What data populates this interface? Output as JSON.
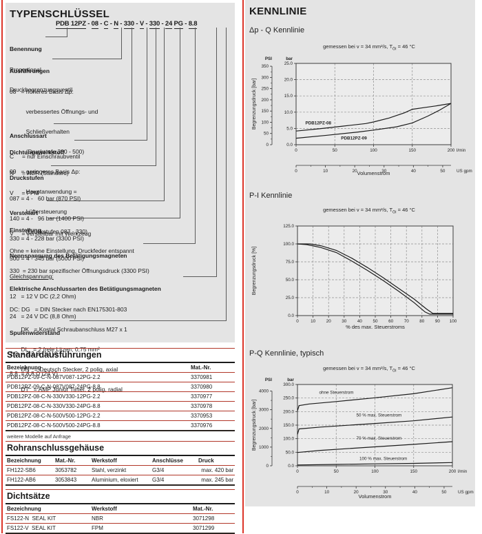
{
  "colors": {
    "accent_red": "#dc3327",
    "table_rule_red": "#b13527",
    "panel_gray": "#e4e4e4",
    "curve_black": "#1b1b1b"
  },
  "left": {
    "type_key": {
      "title": "TYPENSCHLÜSSEL",
      "sep_dash": " - ",
      "sep_space": " ",
      "code_segments": [
        "PDB 12PZ",
        "08",
        "C",
        "N",
        "330",
        "V",
        "330",
        "24",
        "PG",
        "8.8"
      ],
      "groups": [
        {
          "title": "Benennung",
          "lines": [
            "Proportional",
            "Druckbegrenzungsventil"
          ]
        },
        {
          "title": "Ausführungen",
          "lines": [
            "08   = höheres Basis Δp:",
            "          verbessertes Öffnungs- und",
            "          Schließverhalten",
            "          (Druckstufe 330 - 500)",
            "09   = geringeres Basis Δp:",
            "          Hauptanwendung =",
            "          Lüftersteuerung",
            "          (Druckstufen 087 - 330)"
          ]
        },
        {
          "title": "Anschlussart",
          "lines": [
            "C     = nur Einschraubventil"
          ]
        },
        {
          "title": "Dichtungswerkstoff",
          "lines": [
            "N     = NBR (Standard)",
            "V     = FPM"
          ]
        },
        {
          "title": "Druckstufen",
          "lines": [
            "087 = 4 -   60 bar (870 PSI)",
            "140 = 4 -   96 bar (1400 PSI)",
            "330 = 4 - 228 bar (3300 PSI)",
            "500 = 4 - 345 bar (5000 PSI)"
          ]
        },
        {
          "title": "Verstellart",
          "lines": [
            "V     = verstellbar mit Werkzeug"
          ]
        },
        {
          "title": "Einstellung",
          "lines": [
            "Ohne = keine Einstellung, Druckfeder entspannt",
            "330  = 230 bar spezifischer Öffnungsdruck (3300 PSI)"
          ]
        },
        {
          "title": "Nennspannung des Betätigungsmagneten",
          "lines": [
            "Gleichspannung:",
            "12   = 12 V DC (2,2 Ohm)",
            "24   = 24 V DC (8,8 Ohm)"
          ]
        },
        {
          "title": "Elektrische Anschlussarten des Betätigungsmagneten",
          "lines": [
            "DC: DG   = DIN Stecker nach EN175301-803",
            "       DK   = Kostal Schraubanschluss M27 x 1",
            "       DL   = 2 freie Litzen; 0,75 mm²",
            "       DN   = Deutsch Stecker, 2 polig, axial",
            "       DT   = AMP Junior Timer, 2 polig, radial"
          ]
        },
        {
          "title": "Spulenwiderstand",
          "lines": [
            "2.2  = 2,2 Ω (12 V)",
            "8.8  = 8,8 Ω (24 V)"
          ]
        }
      ]
    },
    "tables": [
      {
        "title": "Standardausführungen",
        "columns": [
          "Bezeichnung",
          "Mat.-Nr."
        ],
        "rows": [
          [
            "PDB12PZ-09-C-N-087V087-12PG-2.2",
            "3370981"
          ],
          [
            "PDB12PZ-09-C-N-087V087-24PG-8.8",
            "3370980"
          ],
          [
            "PDB12PZ-08-C-N-330V330-12PG-2.2",
            "3370977"
          ],
          [
            "PDB12PZ-08-C-N-330V330-24PG-8.8",
            "3370978"
          ],
          [
            "PDB12PZ-08-C-N-500V500-12PG-2.2",
            "3370953"
          ],
          [
            "PDB12PZ-08-C-N-500V500-24PG-8.8",
            "3370976"
          ]
        ],
        "footnote": "weitere Modelle auf Anfrage"
      },
      {
        "title": "Rohranschlussgehäuse",
        "columns": [
          "Bezeichnung",
          "Mat.-Nr.",
          "Werkstoff",
          "Anschlüsse",
          "Druck"
        ],
        "rows": [
          [
            "FH122-SB6",
            "3053782",
            "Stahl, verzinkt",
            "G3/4",
            "max. 420 bar"
          ],
          [
            "FH122-AB6",
            "3053843",
            "Aluminium, eloxiert",
            "G3/4",
            "max. 245 bar"
          ]
        ]
      },
      {
        "title": "Dichtsätze",
        "columns": [
          "Bezeichnung",
          "Werkstoff",
          "Mat.-Nr."
        ],
        "rows": [
          [
            "FS122-N  SEAL KIT",
            "NBR",
            "3071298"
          ],
          [
            "FS122-V  SEAL KIT",
            "FPM",
            "3071299"
          ]
        ]
      }
    ]
  },
  "right": {
    "title": "KENNLINIE"
  },
  "chart_data": [
    {
      "heading": "Δp - Q Kennlinie",
      "condition": {
        "pre": "gemessen bei v = 34 mm²/s, T",
        "sub": "Öl",
        "post": " = 46 °C"
      },
      "type": "line",
      "x": {
        "title": "Volumenstrom",
        "unit": "l/min",
        "min": 0,
        "max": 200,
        "ticks": [
          0,
          50,
          100,
          150,
          200
        ],
        "grid": [
          50,
          100,
          150
        ],
        "decimals": 0
      },
      "x2": {
        "unit": "US gpm",
        "ticks": [
          0,
          10,
          20,
          30,
          40,
          50
        ],
        "minor": [
          5,
          15,
          25,
          35,
          45
        ],
        "lmin_per_gpm": 3.7854
      },
      "y": {
        "title": "Begrenzungsdruck [bar]",
        "unit": "bar",
        "min": 0,
        "max": 25,
        "ticks": [
          0,
          5,
          10,
          15,
          20,
          25
        ],
        "decimals": 1
      },
      "y2": {
        "unit": "PSI",
        "ticks": [
          0,
          50,
          100,
          150,
          200,
          250,
          300,
          350
        ],
        "minor": [
          25,
          75,
          125,
          175,
          225,
          275,
          325
        ],
        "psi_per_bar": 14.5038
      },
      "series": [
        {
          "name": "PDB12PZ-08",
          "points": [
            [
              0,
              4.2
            ],
            [
              30,
              4.9
            ],
            [
              60,
              5.7
            ],
            [
              90,
              6.5
            ],
            [
              100,
              7.0
            ],
            [
              120,
              8.2
            ],
            [
              140,
              9.8
            ],
            [
              150,
              10.9
            ],
            [
              165,
              11.4
            ],
            [
              180,
              11.9
            ],
            [
              200,
              12.7
            ]
          ]
        },
        {
          "name": "PDB12PZ-09",
          "points": [
            [
              0,
              2.0
            ],
            [
              40,
              2.9
            ],
            [
              80,
              3.9
            ],
            [
              100,
              4.5
            ],
            [
              130,
              5.5
            ],
            [
              150,
              6.7
            ],
            [
              170,
              8.8
            ],
            [
              185,
              10.6
            ],
            [
              200,
              12.7
            ]
          ]
        }
      ],
      "curve_labels": [
        {
          "text": "PDB12PZ-08",
          "x": 12,
          "y": 6.2,
          "bold": true
        },
        {
          "text": "PDB12PZ-09",
          "x": 58,
          "y": 1.6,
          "bold": true
        }
      ]
    },
    {
      "heading": "P-I Kennlinie",
      "condition": {
        "pre": "gemessen bei v = 34 mm²/s, T",
        "sub": "Öl",
        "post": " = 46 °C"
      },
      "type": "line",
      "x": {
        "title": "% des max. Steuerstroms",
        "unit": "",
        "min": 0,
        "max": 100,
        "ticks": [
          0,
          10,
          20,
          30,
          40,
          50,
          60,
          70,
          80,
          90,
          100
        ],
        "grid": [
          10,
          20,
          30,
          40,
          50,
          60,
          70,
          80,
          90
        ],
        "decimals": 0
      },
      "y": {
        "title": "Begrenzungsdruck [%]",
        "unit": "",
        "min": 0,
        "max": 125,
        "ticks": [
          0,
          25,
          50,
          75,
          100,
          125
        ],
        "decimals": 1
      },
      "series": [
        {
          "name": "hysteresis-upper",
          "points": [
            [
              0,
              100
            ],
            [
              8,
              100
            ],
            [
              15,
              97.5
            ],
            [
              25,
              91
            ],
            [
              35,
              80
            ],
            [
              45,
              67
            ],
            [
              55,
              53
            ],
            [
              65,
              38
            ],
            [
              75,
              23
            ],
            [
              83,
              9
            ],
            [
              87,
              3
            ],
            [
              100,
              3
            ]
          ]
        },
        {
          "name": "hysteresis-lower",
          "points": [
            [
              0,
              100
            ],
            [
              6,
              99
            ],
            [
              15,
              95
            ],
            [
              25,
              88
            ],
            [
              35,
              76
            ],
            [
              45,
              63
            ],
            [
              55,
              49
            ],
            [
              65,
              34
            ],
            [
              75,
              18
            ],
            [
              82,
              5
            ],
            [
              85,
              2
            ],
            [
              100,
              2
            ]
          ]
        }
      ],
      "curve_labels": []
    },
    {
      "heading": "P-Q Kennlinie, typisch",
      "condition": {
        "pre": "gemessen bei v = 34 mm²/s, T",
        "sub": "Öl",
        "post": " = 46 °C"
      },
      "type": "line",
      "x": {
        "title": "Volumenstrom",
        "unit": "l/min",
        "min": 0,
        "max": 200,
        "ticks": [
          0,
          50,
          100,
          150,
          200
        ],
        "grid": [
          50,
          100,
          150
        ],
        "decimals": 0
      },
      "x2": {
        "unit": "US gpm",
        "ticks": [
          0,
          10,
          20,
          30,
          40,
          50
        ],
        "minor": [
          5,
          15,
          25,
          35,
          45
        ],
        "lmin_per_gpm": 3.7854
      },
      "y": {
        "title": "Begrenzungsdruck [bar]",
        "unit": "bar",
        "min": 0,
        "max": 300,
        "ticks": [
          0,
          50,
          100,
          150,
          200,
          250,
          300
        ],
        "decimals": 1
      },
      "y2": {
        "unit": "PSI",
        "ticks": [
          0,
          1000,
          2000,
          3000,
          4000
        ],
        "minor": [
          500,
          1500,
          2500,
          3500
        ],
        "psi_per_bar": 14.5038
      },
      "series": [
        {
          "name": "ohne Steuerstrom",
          "points": [
            [
              0,
              203
            ],
            [
              2,
              222
            ],
            [
              15,
              228
            ],
            [
              50,
              237
            ],
            [
              100,
              251
            ],
            [
              150,
              266
            ],
            [
              200,
              288
            ]
          ]
        },
        {
          "name": "50 % max. Steuerstrom",
          "points": [
            [
              0,
              116
            ],
            [
              2,
              136
            ],
            [
              30,
              143
            ],
            [
              100,
              156
            ],
            [
              150,
              166
            ],
            [
              200,
              180
            ]
          ]
        },
        {
          "name": "70 % max. Steuerstrom",
          "points": [
            [
              0,
              49
            ],
            [
              30,
              57
            ],
            [
              100,
              70
            ],
            [
              150,
              79
            ],
            [
              200,
              89
            ]
          ]
        },
        {
          "name": "100 % max. Steuerstrom",
          "points": [
            [
              0,
              3
            ],
            [
              50,
              5
            ],
            [
              100,
              7
            ],
            [
              150,
              9
            ],
            [
              200,
              12
            ]
          ]
        }
      ],
      "curve_labels": [
        {
          "text": "ohne Steuerstrom",
          "x": 28,
          "y": 266
        },
        {
          "text": "50 % max. Steuerstrom",
          "x": 76,
          "y": 182
        },
        {
          "text": "70 % max. Steuerstrom",
          "x": 76,
          "y": 97
        },
        {
          "text": "100 % max. Steuerstrom",
          "x": 80,
          "y": 22
        }
      ]
    }
  ]
}
